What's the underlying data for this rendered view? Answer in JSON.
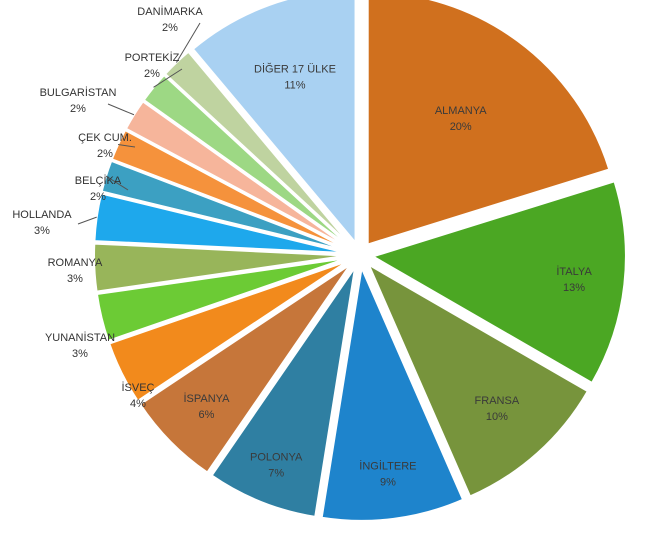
{
  "chart_data": {
    "type": "pie",
    "style": "exploded",
    "slices": [
      {
        "label": "ALMANYA",
        "value": 20,
        "percent_label": "20%",
        "color": "#D0701E"
      },
      {
        "label": "İTALYA",
        "value": 13,
        "percent_label": "13%",
        "color": "#4BA723"
      },
      {
        "label": "FRANSA",
        "value": 10,
        "percent_label": "10%",
        "color": "#77943C"
      },
      {
        "label": "İNGİLTERE",
        "value": 9,
        "percent_label": "9%",
        "color": "#1E84CC"
      },
      {
        "label": "POLONYA",
        "value": 7,
        "percent_label": "7%",
        "color": "#2F7FA2"
      },
      {
        "label": "İSPANYA",
        "value": 6,
        "percent_label": "6%",
        "color": "#C6763A"
      },
      {
        "label": "İSVEÇ",
        "value": 4,
        "percent_label": "4%",
        "color": "#F28A1C"
      },
      {
        "label": "YUNANİSTAN",
        "value": 3,
        "percent_label": "3%",
        "color": "#6CCB35"
      },
      {
        "label": "ROMANYA",
        "value": 3,
        "percent_label": "3%",
        "color": "#98B55A"
      },
      {
        "label": "HOLLANDA",
        "value": 3,
        "percent_label": "3%",
        "color": "#1EA8EC"
      },
      {
        "label": "BELÇİKA",
        "value": 2,
        "percent_label": "2%",
        "color": "#3CA0C2"
      },
      {
        "label": "ÇEK CUM.",
        "value": 2,
        "percent_label": "2%",
        "color": "#F5923C"
      },
      {
        "label": "BULGARİSTAN",
        "value": 2,
        "percent_label": "2%",
        "color": "#F6B59B"
      },
      {
        "label": "PORTEKİZ",
        "value": 2,
        "percent_label": "2%",
        "color": "#9DD884"
      },
      {
        "label": "DANİMARKA",
        "value": 2,
        "percent_label": "2%",
        "color": "#BFD3A0"
      },
      {
        "label": "DİĞER 17 ÜLKE",
        "value": 11,
        "percent_label": "11%",
        "color": "#A9D1F2"
      }
    ]
  }
}
